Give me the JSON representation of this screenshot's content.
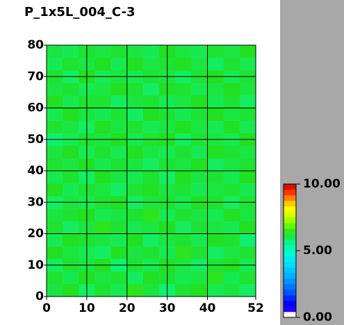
{
  "chart_data": {
    "type": "heatmap",
    "title": "P_1x5L_004_C-3",
    "xbins": [
      0,
      4,
      8,
      12,
      16,
      20,
      24,
      28,
      32,
      36,
      40,
      44,
      48,
      52
    ],
    "ybins": [
      0,
      4,
      8,
      12,
      16,
      20,
      24,
      28,
      32,
      36,
      40,
      44,
      48,
      52,
      56,
      60,
      64,
      68,
      72,
      76,
      80
    ],
    "values": [
      [
        6.1,
        6.3,
        5.9,
        6.2,
        6.0,
        6.4,
        6.1,
        5.8,
        6.2,
        6.3,
        6.0,
        6.1,
        5.9
      ],
      [
        6.2,
        6.0,
        6.3,
        6.1,
        6.2,
        5.9,
        6.3,
        6.2,
        6.0,
        6.1,
        6.4,
        6.0,
        6.2
      ],
      [
        5.9,
        6.2,
        6.1,
        6.3,
        5.8,
        6.2,
        6.0,
        6.3,
        6.1,
        5.9,
        6.2,
        6.3,
        6.0
      ],
      [
        6.3,
        6.1,
        6.0,
        5.9,
        6.3,
        6.1,
        6.2,
        6.0,
        6.4,
        6.2,
        5.9,
        6.1,
        6.2
      ],
      [
        6.0,
        6.3,
        6.2,
        6.1,
        6.0,
        6.3,
        5.9,
        6.1,
        6.2,
        6.0,
        6.3,
        6.2,
        5.8
      ],
      [
        6.2,
        5.9,
        6.1,
        6.4,
        6.2,
        6.0,
        6.1,
        6.3,
        5.9,
        6.2,
        6.1,
        6.0,
        6.3
      ],
      [
        6.1,
        6.2,
        6.3,
        6.0,
        6.1,
        6.2,
        6.4,
        6.0,
        6.2,
        6.1,
        6.0,
        6.3,
        6.1
      ],
      [
        5.9,
        6.1,
        6.0,
        6.2,
        6.3,
        5.9,
        6.1,
        6.2,
        6.0,
        6.3,
        6.2,
        5.9,
        6.2
      ],
      [
        6.3,
        6.0,
        6.2,
        6.1,
        5.9,
        6.2,
        6.3,
        6.1,
        6.2,
        6.0,
        6.1,
        6.2,
        6.0
      ],
      [
        6.0,
        6.2,
        5.9,
        6.3,
        6.1,
        6.0,
        6.2,
        5.9,
        6.3,
        6.1,
        6.2,
        6.0,
        6.3
      ],
      [
        6.2,
        6.1,
        6.3,
        6.0,
        6.2,
        6.1,
        5.9,
        6.2,
        6.1,
        6.3,
        5.9,
        6.1,
        6.2
      ],
      [
        6.1,
        6.3,
        6.0,
        6.2,
        6.0,
        6.3,
        6.1,
        6.0,
        6.2,
        6.0,
        6.3,
        6.2,
        6.1
      ],
      [
        5.8,
        6.0,
        6.2,
        6.1,
        6.3,
        6.0,
        6.2,
        6.3,
        5.9,
        6.2,
        6.1,
        6.0,
        6.3
      ],
      [
        6.2,
        6.1,
        5.9,
        6.3,
        6.1,
        6.2,
        6.0,
        6.1,
        6.3,
        6.1,
        6.0,
        6.3,
        6.0
      ],
      [
        6.0,
        6.3,
        6.1,
        6.0,
        6.2,
        5.9,
        6.3,
        6.2,
        6.0,
        6.2,
        6.3,
        6.1,
        6.2
      ],
      [
        6.3,
        6.0,
        6.2,
        6.2,
        5.9,
        6.1,
        6.2,
        6.0,
        6.1,
        6.3,
        6.0,
        6.2,
        5.9
      ],
      [
        6.1,
        6.2,
        6.0,
        6.1,
        6.3,
        6.2,
        5.9,
        6.3,
        6.2,
        6.0,
        6.1,
        6.3,
        6.1
      ],
      [
        6.2,
        5.9,
        6.3,
        6.0,
        6.1,
        6.0,
        6.2,
        6.1,
        5.9,
        6.2,
        6.3,
        6.0,
        6.2
      ],
      [
        6.0,
        6.2,
        6.1,
        6.3,
        6.0,
        6.3,
        6.1,
        6.2,
        6.3,
        6.1,
        5.9,
        6.2,
        6.0
      ],
      [
        6.1,
        6.0,
        6.2,
        6.1,
        6.2,
        6.1,
        6.0,
        6.3,
        6.1,
        6.0,
        6.2,
        6.1,
        6.3
      ]
    ],
    "xlim": [
      0,
      52
    ],
    "ylim": [
      0,
      80
    ],
    "xticks": [
      0,
      10,
      20,
      30,
      40,
      52
    ],
    "yticks": [
      0,
      10,
      20,
      30,
      40,
      50,
      60,
      70,
      80
    ],
    "clim": [
      0,
      10
    ],
    "cticks": [
      {
        "value": 0,
        "label": "0.00"
      },
      {
        "value": 5,
        "label": "5.00"
      },
      {
        "value": 10,
        "label": "10.00"
      }
    ],
    "grid": true
  }
}
